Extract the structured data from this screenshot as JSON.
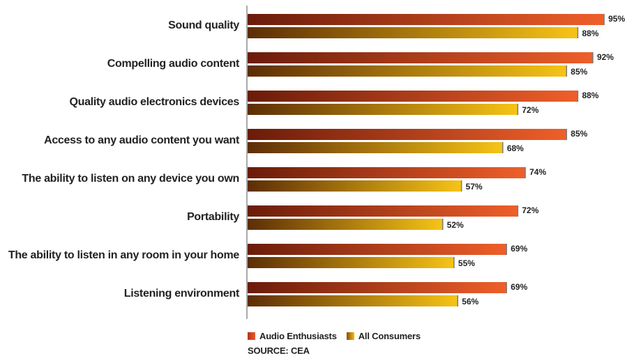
{
  "chart_data": {
    "type": "bar",
    "orientation": "horizontal",
    "categories": [
      "Sound quality",
      "Compelling audio content",
      "Quality audio electronics devices",
      "Access to any audio content you want",
      "The ability to listen on any device you own",
      "Portability",
      "The ability to listen in any room in your home",
      "Listening environment"
    ],
    "series": [
      {
        "name": "Audio Enthusiasts",
        "values": [
          95,
          92,
          88,
          85,
          74,
          72,
          69,
          69
        ],
        "labels": [
          "95%",
          "92%",
          "88%",
          "85%",
          "74%",
          "72%",
          "69%",
          "69%"
        ],
        "color_start": "#6a1c0a",
        "color_end": "#ef5f2a"
      },
      {
        "name": "All Consumers",
        "values": [
          88,
          85,
          72,
          68,
          57,
          52,
          55,
          56
        ],
        "labels": [
          "88%",
          "85%",
          "72%",
          "68%",
          "57%",
          "52%",
          "55%",
          "56%"
        ],
        "color_start": "#5c2d06",
        "color_end": "#f6c416"
      }
    ],
    "xlim": [
      0,
      100
    ],
    "grid": false,
    "legend_position": "bottom-left",
    "source": "SOURCE: CEA"
  }
}
